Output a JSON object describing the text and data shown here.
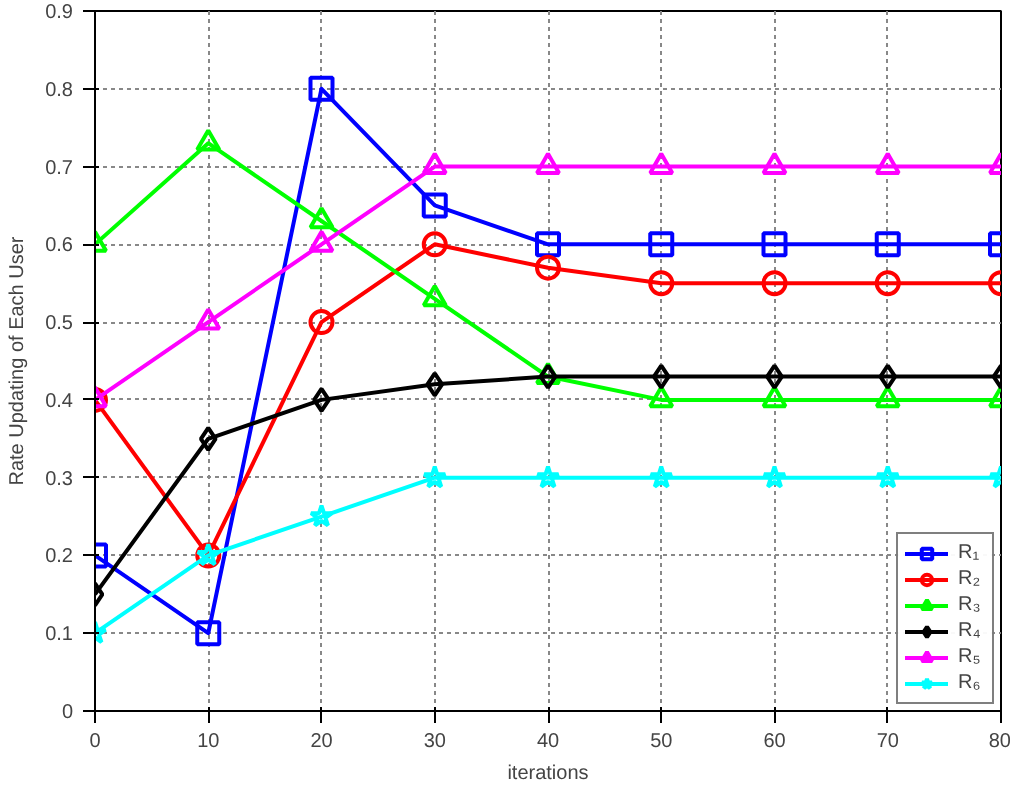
{
  "chart_data": {
    "type": "line",
    "xlabel": "iterations",
    "ylabel": "Rate Updating of Each User",
    "x": [
      0,
      10,
      20,
      30,
      40,
      50,
      60,
      70,
      80
    ],
    "xlim": [
      0,
      80
    ],
    "xticks": [
      0,
      10,
      20,
      30,
      40,
      50,
      60,
      70,
      80
    ],
    "ylim": [
      0,
      0.9
    ],
    "yticks": [
      0,
      0.1,
      0.2,
      0.3,
      0.4,
      0.5,
      0.6,
      0.7,
      0.8,
      0.9
    ],
    "grid": true,
    "legend": "bottom right",
    "line_style": "solid",
    "series": [
      {
        "name": "R₁",
        "color": "#0000ff",
        "marker": "square",
        "values": [
          0.2,
          0.1,
          0.8,
          0.65,
          0.6,
          0.6,
          0.6,
          0.6,
          0.6
        ]
      },
      {
        "name": "R₂",
        "color": "#ff0000",
        "marker": "circle",
        "values": [
          0.4,
          0.2,
          0.5,
          0.6,
          0.57,
          0.55,
          0.55,
          0.55,
          0.55
        ]
      },
      {
        "name": "R₃",
        "color": "#00ff00",
        "marker": "triangle",
        "values": [
          0.6,
          0.73,
          0.63,
          0.53,
          0.43,
          0.4,
          0.4,
          0.4,
          0.4
        ]
      },
      {
        "name": "R₄",
        "color": "#000000",
        "marker": "diamond",
        "values": [
          0.15,
          0.35,
          0.4,
          0.42,
          0.43,
          0.43,
          0.43,
          0.43,
          0.43
        ]
      },
      {
        "name": "R₅",
        "color": "#ff00ff",
        "marker": "triangle",
        "values": [
          0.4,
          0.5,
          0.6,
          0.7,
          0.7,
          0.7,
          0.7,
          0.7,
          0.7
        ]
      },
      {
        "name": "R₆",
        "color": "#00ffff",
        "marker": "star",
        "values": [
          0.1,
          0.2,
          0.25,
          0.3,
          0.3,
          0.3,
          0.3,
          0.3,
          0.3
        ]
      }
    ]
  }
}
